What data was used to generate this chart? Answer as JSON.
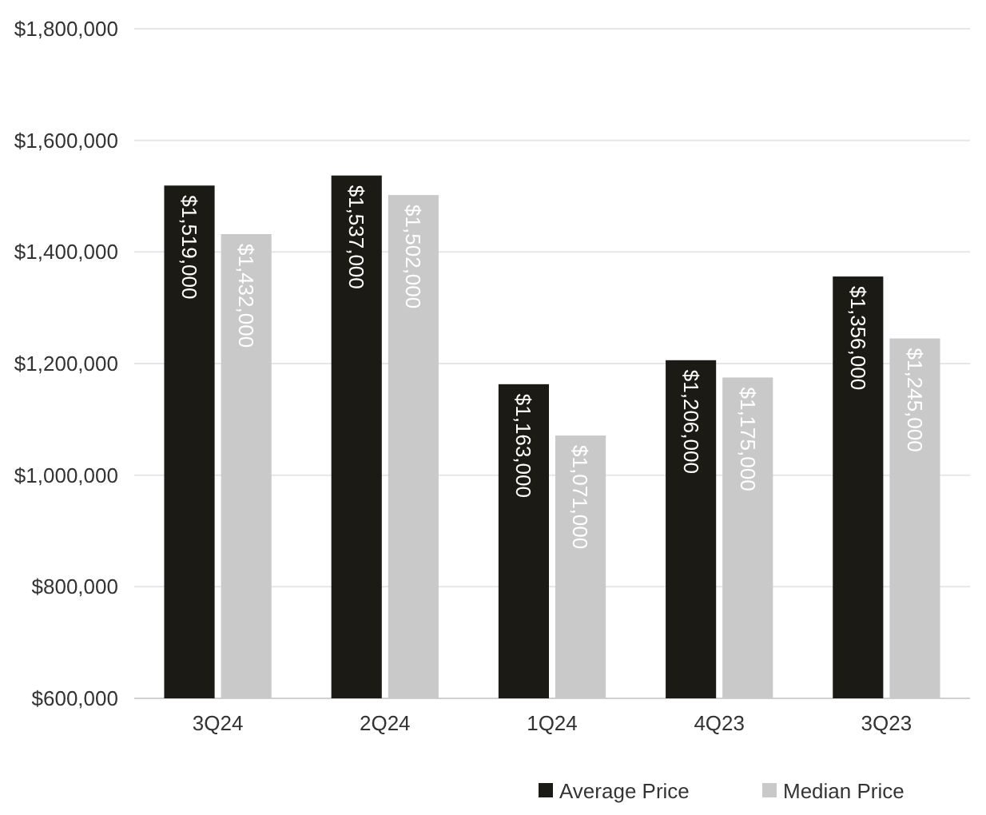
{
  "chart_data": {
    "type": "bar",
    "categories": [
      "3Q24",
      "2Q24",
      "1Q24",
      "4Q23",
      "3Q23"
    ],
    "series": [
      {
        "name": "Average Price",
        "color": "#1b1a14",
        "values": [
          1519000,
          1537000,
          1163000,
          1206000,
          1356000
        ],
        "value_labels": [
          "$1,519,000",
          "$1,537,000",
          "$1,163,000",
          "$1,206,000",
          "$1,356,000"
        ]
      },
      {
        "name": "Median Price",
        "color": "#c9c9c9",
        "values": [
          1432000,
          1502000,
          1071000,
          1175000,
          1245000
        ],
        "value_labels": [
          "$1,432,000",
          "$1,502,000",
          "$1,071,000",
          "$1,175,000",
          "$1,245,000"
        ]
      }
    ],
    "ylim": [
      600000,
      1800000
    ],
    "yticks": [
      {
        "value": 600000,
        "label": "$600,000"
      },
      {
        "value": 800000,
        "label": "$800,000"
      },
      {
        "value": 1000000,
        "label": "$1,000,000"
      },
      {
        "value": 1200000,
        "label": "$1,200,000"
      },
      {
        "value": 1400000,
        "label": "$1,400,000"
      },
      {
        "value": 1600000,
        "label": "$1,600,000"
      },
      {
        "value": 1800000,
        "label": "$1,800,000"
      }
    ],
    "grid": "y",
    "legend": "bottom right"
  }
}
